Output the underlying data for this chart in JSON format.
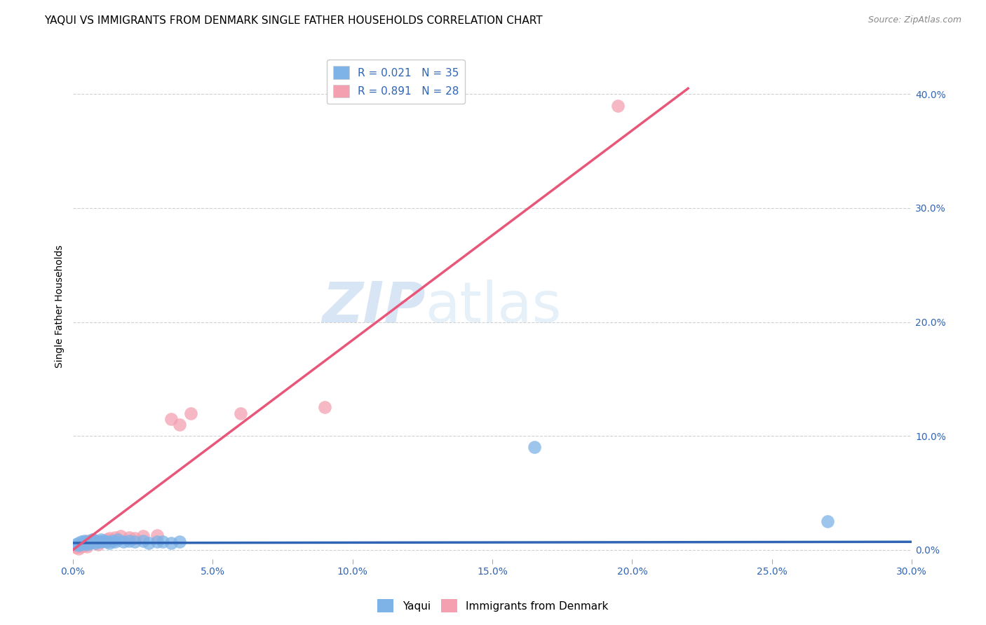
{
  "title": "YAQUI VS IMMIGRANTS FROM DENMARK SINGLE FATHER HOUSEHOLDS CORRELATION CHART",
  "source": "Source: ZipAtlas.com",
  "ylabel": "Single Father Households",
  "x_min": 0.0,
  "x_max": 0.3,
  "y_min": -0.008,
  "y_max": 0.435,
  "legend_labels": [
    "Yaqui",
    "Immigrants from Denmark"
  ],
  "R_yaqui": 0.021,
  "N_yaqui": 35,
  "R_denmark": 0.891,
  "N_denmark": 28,
  "yaqui_color": "#7eb3e8",
  "denmark_color": "#f4a0b0",
  "yaqui_line_color": "#3065b5",
  "denmark_line_color": "#e8567a",
  "background_color": "#ffffff",
  "watermark_zip": "ZIP",
  "watermark_atlas": "atlas",
  "title_fontsize": 11,
  "tick_fontsize": 10,
  "yaqui_x": [
    0.001,
    0.002,
    0.002,
    0.003,
    0.003,
    0.004,
    0.004,
    0.005,
    0.005,
    0.006,
    0.006,
    0.007,
    0.007,
    0.008,
    0.008,
    0.009,
    0.01,
    0.01,
    0.011,
    0.012,
    0.013,
    0.014,
    0.015,
    0.016,
    0.018,
    0.02,
    0.022,
    0.025,
    0.027,
    0.03,
    0.032,
    0.035,
    0.038,
    0.165,
    0.27
  ],
  "yaqui_y": [
    0.005,
    0.004,
    0.006,
    0.005,
    0.007,
    0.006,
    0.008,
    0.005,
    0.007,
    0.006,
    0.008,
    0.007,
    0.009,
    0.006,
    0.008,
    0.007,
    0.007,
    0.009,
    0.008,
    0.007,
    0.006,
    0.008,
    0.007,
    0.009,
    0.007,
    0.008,
    0.007,
    0.008,
    0.006,
    0.007,
    0.007,
    0.006,
    0.007,
    0.09,
    0.025
  ],
  "denmark_x": [
    0.001,
    0.002,
    0.002,
    0.003,
    0.003,
    0.004,
    0.004,
    0.005,
    0.005,
    0.006,
    0.007,
    0.008,
    0.009,
    0.01,
    0.012,
    0.013,
    0.015,
    0.017,
    0.02,
    0.022,
    0.025,
    0.03,
    0.035,
    0.038,
    0.042,
    0.06,
    0.09,
    0.195
  ],
  "denmark_y": [
    0.002,
    0.003,
    0.001,
    0.003,
    0.005,
    0.004,
    0.006,
    0.003,
    0.008,
    0.006,
    0.009,
    0.007,
    0.005,
    0.007,
    0.009,
    0.01,
    0.011,
    0.012,
    0.011,
    0.01,
    0.012,
    0.013,
    0.115,
    0.11,
    0.12,
    0.12,
    0.125,
    0.39
  ],
  "yaqui_line_x": [
    0.0,
    0.3
  ],
  "yaqui_line_y": [
    0.006,
    0.007
  ],
  "denmark_line_x": [
    0.0,
    0.22
  ],
  "denmark_line_y": [
    0.0,
    0.405
  ]
}
